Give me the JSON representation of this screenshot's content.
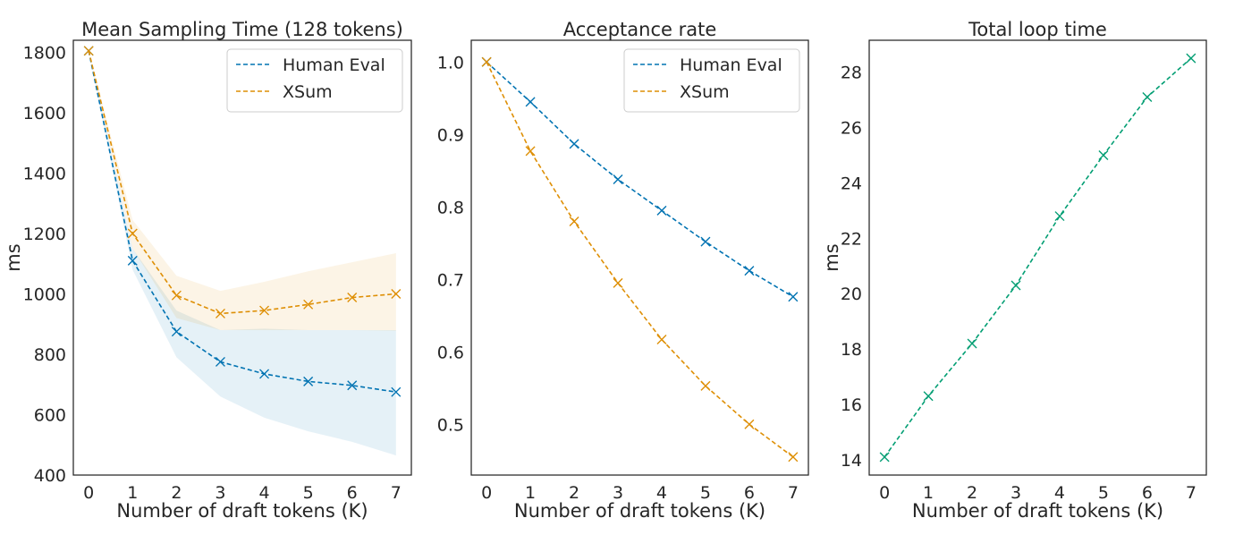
{
  "chart_data": [
    {
      "type": "line",
      "title": "Mean Sampling Time (128 tokens)",
      "xlabel": "Number of draft tokens (K)",
      "ylabel": "ms",
      "x": [
        0,
        1,
        2,
        3,
        4,
        5,
        6,
        7
      ],
      "xlim": [
        -0.35,
        7.35
      ],
      "ylim": [
        400,
        1840
      ],
      "yticks": [
        400,
        600,
        800,
        1000,
        1200,
        1400,
        1600,
        1800
      ],
      "grid": false,
      "legend": "upper right",
      "series": [
        {
          "name": "Human Eval",
          "color": "#0173b2",
          "values": [
            1805,
            1110,
            875,
            775,
            735,
            710,
            697,
            675
          ],
          "band_lower": [
            1805,
            1080,
            790,
            660,
            590,
            545,
            510,
            465
          ],
          "band_upper": [
            1805,
            1150,
            945,
            880,
            885,
            880,
            880,
            880
          ]
        },
        {
          "name": "XSum",
          "color": "#de8f05",
          "values": [
            1805,
            1200,
            995,
            935,
            945,
            965,
            988,
            1000
          ],
          "band_lower": [
            1805,
            1150,
            920,
            880,
            880,
            880,
            880,
            878
          ],
          "band_upper": [
            1805,
            1245,
            1060,
            1010,
            1040,
            1075,
            1105,
            1135
          ]
        }
      ]
    },
    {
      "type": "line",
      "title": "Acceptance rate",
      "xlabel": "Number of draft tokens (K)",
      "ylabel": "",
      "x": [
        0,
        1,
        2,
        3,
        4,
        5,
        6,
        7
      ],
      "xlim": [
        -0.35,
        7.35
      ],
      "ylim": [
        0.43,
        1.03
      ],
      "yticks": [
        0.5,
        0.6,
        0.7,
        0.8,
        0.9,
        1.0
      ],
      "ytick_labels": [
        "0.5",
        "0.6",
        "0.7",
        "0.8",
        "0.9",
        "1.0"
      ],
      "grid": false,
      "legend": "upper right",
      "series": [
        {
          "name": "Human Eval",
          "color": "#0173b2",
          "values": [
            1.0,
            0.945,
            0.887,
            0.838,
            0.795,
            0.752,
            0.712,
            0.676
          ]
        },
        {
          "name": "XSum",
          "color": "#de8f05",
          "values": [
            1.0,
            0.877,
            0.78,
            0.695,
            0.617,
            0.553,
            0.5,
            0.455
          ]
        }
      ]
    },
    {
      "type": "line",
      "title": "Total loop time",
      "xlabel": "Number of draft tokens (K)",
      "ylabel": "ms",
      "x": [
        0,
        1,
        2,
        3,
        4,
        5,
        6,
        7
      ],
      "xlim": [
        -0.35,
        7.35
      ],
      "ylim": [
        13.45,
        29.15
      ],
      "yticks": [
        14,
        16,
        18,
        20,
        22,
        24,
        26,
        28
      ],
      "grid": false,
      "legend": "none",
      "series": [
        {
          "color": "#029e73",
          "values": [
            14.1,
            16.3,
            18.2,
            20.3,
            22.8,
            25.0,
            27.1,
            28.5
          ]
        }
      ]
    }
  ]
}
